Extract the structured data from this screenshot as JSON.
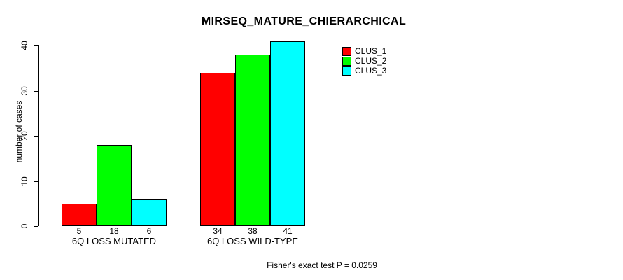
{
  "chart_data": {
    "type": "bar",
    "title": "MIRSEQ_MATURE_CHIERARCHICAL",
    "ylabel": "number of cases",
    "xlabel": "",
    "ylim": [
      0,
      40
    ],
    "yticks": [
      0,
      10,
      20,
      30,
      40
    ],
    "categories": [
      "6Q LOSS MUTATED",
      "6Q LOSS WILD-TYPE"
    ],
    "series": [
      {
        "name": "CLUS_1",
        "color": "#ff0000",
        "values": [
          5,
          34
        ]
      },
      {
        "name": "CLUS_2",
        "color": "#00ff00",
        "values": [
          18,
          38
        ]
      },
      {
        "name": "CLUS_3",
        "color": "#00ffff",
        "values": [
          6,
          41
        ]
      }
    ],
    "bar_value_labels": [
      [
        5,
        18,
        6
      ],
      [
        34,
        38,
        41
      ]
    ],
    "grid": false,
    "legend_position": "top-right",
    "annotation": "Fisher's exact test P = 0.0259",
    "colors": {
      "bar_border": "#000000",
      "text": "#000000",
      "background": "#ffffff"
    }
  }
}
